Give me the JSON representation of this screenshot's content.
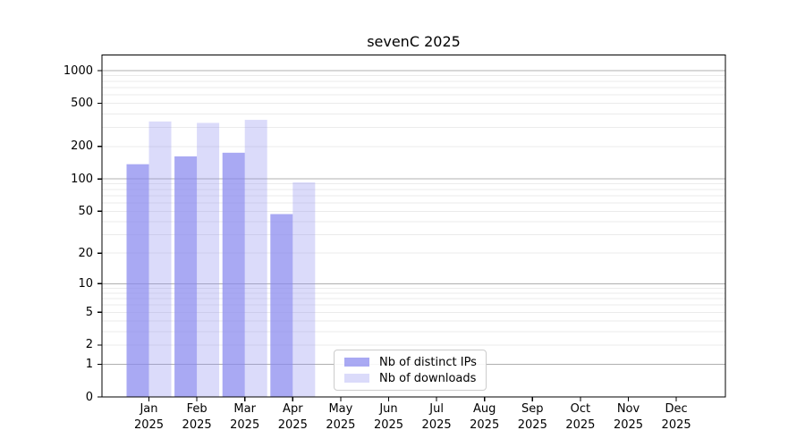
{
  "chart_data": {
    "type": "bar",
    "title": "sevenC 2025",
    "categories": [
      "Jan",
      "Feb",
      "Mar",
      "Apr",
      "May",
      "Jun",
      "Jul",
      "Aug",
      "Sep",
      "Oct",
      "Nov",
      "Dec"
    ],
    "category_year": "2025",
    "series": [
      {
        "name": "Nb of distinct IPs",
        "color": "#8888ee",
        "alpha": 0.72,
        "values": [
          137,
          162,
          175,
          47,
          0,
          0,
          0,
          0,
          0,
          0,
          0,
          0
        ]
      },
      {
        "name": "Nb of downloads",
        "color": "#8888ee",
        "alpha": 0.3,
        "values": [
          340,
          330,
          352,
          93,
          0,
          0,
          0,
          0,
          0,
          0,
          0,
          0
        ]
      }
    ],
    "y_ticks": [
      0,
      1,
      2,
      5,
      10,
      20,
      50,
      100,
      200,
      500,
      1000
    ],
    "y_scale": "symlog",
    "ylim": [
      0,
      1430
    ],
    "grid": true,
    "grid_major_at": [
      1,
      10,
      100,
      1000
    ],
    "legend_position": "lower center inside"
  },
  "colors": {
    "background": "#ffffff",
    "frame": "#000000",
    "grid_major": "#b0b0b0",
    "grid_minor": "#ebebeb",
    "tick_text": "#000000",
    "legend_border": "#cccccc"
  }
}
